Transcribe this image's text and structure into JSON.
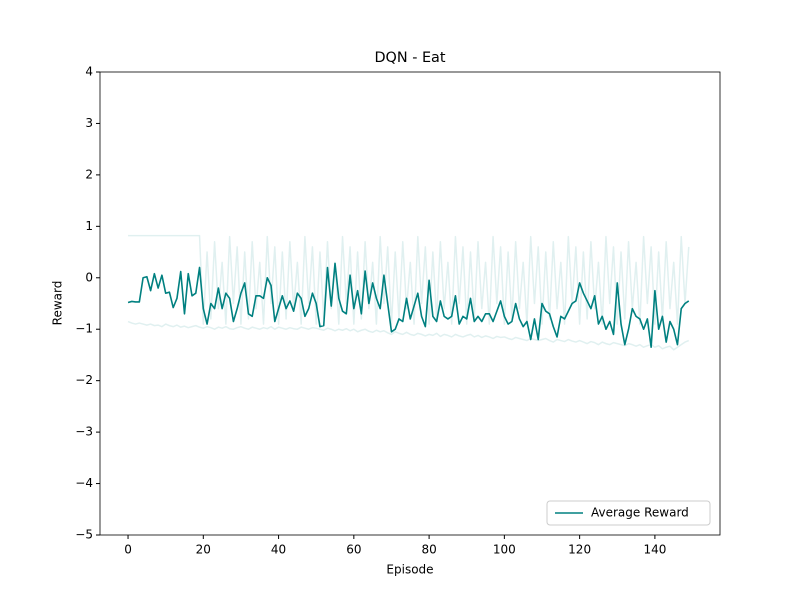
{
  "chart_data": {
    "type": "line",
    "title": "DQN - Eat",
    "xlabel": "Episode",
    "ylabel": "Reward",
    "x": [
      0,
      1,
      2,
      3,
      4,
      5,
      6,
      7,
      8,
      9,
      10,
      11,
      12,
      13,
      14,
      15,
      16,
      17,
      18,
      19,
      20,
      21,
      22,
      23,
      24,
      25,
      26,
      27,
      28,
      29,
      30,
      31,
      32,
      33,
      34,
      35,
      36,
      37,
      38,
      39,
      40,
      41,
      42,
      43,
      44,
      45,
      46,
      47,
      48,
      49,
      50,
      51,
      52,
      53,
      54,
      55,
      56,
      57,
      58,
      59,
      60,
      61,
      62,
      63,
      64,
      65,
      66,
      67,
      68,
      69,
      70,
      71,
      72,
      73,
      74,
      75,
      76,
      77,
      78,
      79,
      80,
      81,
      82,
      83,
      84,
      85,
      86,
      87,
      88,
      89,
      90,
      91,
      92,
      93,
      94,
      95,
      96,
      97,
      98,
      99,
      100,
      101,
      102,
      103,
      104,
      105,
      106,
      107,
      108,
      109,
      110,
      111,
      112,
      113,
      114,
      115,
      116,
      117,
      118,
      119,
      120,
      121,
      122,
      123,
      124,
      125,
      126,
      127,
      128,
      129,
      130,
      131,
      132,
      133,
      134,
      135,
      136,
      137,
      138,
      139,
      140,
      141,
      142,
      143,
      144,
      145,
      146,
      147,
      148,
      149
    ],
    "series": [
      {
        "color": "#008080",
        "alpha": 0.12,
        "values": [
          -0.85,
          -0.88,
          -0.9,
          -0.88,
          -0.9,
          -0.92,
          -0.9,
          -0.93,
          -0.92,
          -0.95,
          -0.9,
          -0.93,
          -0.95,
          -0.92,
          -0.96,
          -0.94,
          -0.97,
          -0.95,
          -0.93,
          -0.96,
          -0.98,
          -0.95,
          -0.97,
          -1.0,
          -0.96,
          -0.98,
          -0.95,
          -0.99,
          -1.0,
          -0.97,
          -0.95,
          -0.98,
          -1.0,
          -0.96,
          -0.98,
          -1.0,
          -0.97,
          -0.99,
          -0.95,
          -1.0,
          -0.96,
          -0.98,
          -1.0,
          -0.97,
          -0.99,
          -1.0,
          -0.96,
          -0.98,
          -1.0,
          -0.97,
          -0.98,
          -1.0,
          -1.02,
          -0.98,
          -1.0,
          -1.03,
          -1.0,
          -1.02,
          -0.99,
          -1.03,
          -1.0,
          -1.05,
          -1.02,
          -1.0,
          -1.04,
          -1.06,
          -1.02,
          -1.05,
          -1.03,
          -1.07,
          -1.1,
          -1.05,
          -1.08,
          -1.1,
          -1.06,
          -1.1,
          -1.12,
          -1.08,
          -1.1,
          -1.13,
          -1.1,
          -1.12,
          -1.08,
          -1.14,
          -1.1,
          -1.12,
          -1.15,
          -1.1,
          -1.13,
          -1.15,
          -1.12,
          -1.1,
          -1.15,
          -1.12,
          -1.16,
          -1.13,
          -1.15,
          -1.18,
          -1.14,
          -1.16,
          -1.15,
          -1.18,
          -1.2,
          -1.16,
          -1.18,
          -1.2,
          -1.22,
          -1.18,
          -1.2,
          -1.22,
          -1.2,
          -1.18,
          -1.22,
          -1.25,
          -1.2,
          -1.22,
          -1.24,
          -1.2,
          -1.23,
          -1.25,
          -1.22,
          -1.25,
          -1.28,
          -1.24,
          -1.26,
          -1.3,
          -1.25,
          -1.28,
          -1.3,
          -1.26,
          -1.28,
          -1.3,
          -1.32,
          -1.28,
          -1.3,
          -1.33,
          -1.3,
          -1.35,
          -1.32,
          -1.3,
          -1.35,
          -1.32,
          -1.38,
          -1.35,
          -1.33,
          -1.4,
          -1.35,
          -1.3,
          -1.25,
          -1.22
        ]
      },
      {
        "color": "#008080",
        "alpha": 0.12,
        "values": [
          0.82,
          0.82,
          0.82,
          0.82,
          0.82,
          0.82,
          0.82,
          0.82,
          0.82,
          0.82,
          0.82,
          0.82,
          0.82,
          0.82,
          0.82,
          0.82,
          0.82,
          0.82,
          0.82,
          0.82,
          -0.9,
          0.5,
          -0.8,
          0.7,
          -0.6,
          0.3,
          -0.9,
          0.8,
          -0.5,
          0.6,
          -0.9,
          0.5,
          -0.8,
          0.7,
          -0.6,
          0.3,
          -0.9,
          0.8,
          -0.5,
          0.6,
          -0.9,
          0.5,
          -0.8,
          0.7,
          -0.6,
          0.3,
          -0.9,
          0.8,
          -0.5,
          0.6,
          -0.9,
          0.5,
          -0.8,
          0.7,
          -0.6,
          0.3,
          -0.9,
          0.8,
          -0.5,
          0.6,
          -0.9,
          0.5,
          -0.8,
          0.7,
          -0.6,
          0.3,
          -0.9,
          0.8,
          -0.5,
          0.6,
          -0.9,
          0.5,
          -0.8,
          0.7,
          -0.6,
          0.3,
          -0.9,
          0.8,
          -0.5,
          0.6,
          -0.9,
          0.5,
          -0.8,
          0.7,
          -0.6,
          0.3,
          -0.9,
          0.8,
          -0.5,
          0.6,
          -0.9,
          0.5,
          -0.8,
          0.7,
          -0.6,
          0.3,
          -0.9,
          0.8,
          -0.5,
          0.6,
          -0.9,
          0.5,
          -0.8,
          0.7,
          -0.6,
          0.3,
          -0.9,
          0.8,
          -0.5,
          0.6,
          -0.9,
          0.5,
          -0.8,
          0.7,
          -0.6,
          0.3,
          -0.9,
          0.8,
          -0.5,
          0.6,
          -0.9,
          0.5,
          -0.8,
          0.7,
          -0.6,
          0.3,
          -0.9,
          0.8,
          -0.5,
          0.6,
          -0.9,
          0.5,
          -0.8,
          0.7,
          -0.6,
          0.3,
          -0.9,
          0.8,
          -0.5,
          0.6,
          -0.9,
          0.5,
          -0.8,
          0.7,
          -0.6,
          0.3,
          -0.9,
          0.8,
          -0.5,
          0.6
        ]
      },
      {
        "name": "Average Reward",
        "color": "#008080",
        "alpha": 1,
        "values": [
          -0.48,
          -0.46,
          -0.47,
          -0.47,
          0.0,
          0.02,
          -0.25,
          0.08,
          -0.2,
          0.05,
          -0.3,
          -0.28,
          -0.58,
          -0.4,
          0.12,
          -0.7,
          0.08,
          -0.35,
          -0.3,
          0.2,
          -0.6,
          -0.9,
          -0.5,
          -0.6,
          -0.2,
          -0.6,
          -0.3,
          -0.4,
          -0.85,
          -0.6,
          -0.3,
          -0.1,
          -0.7,
          -0.75,
          -0.35,
          -0.35,
          -0.4,
          0.0,
          -0.15,
          -0.85,
          -0.6,
          -0.35,
          -0.6,
          -0.45,
          -0.65,
          -0.3,
          -0.4,
          -0.75,
          -0.6,
          -0.3,
          -0.5,
          -0.95,
          -0.93,
          0.2,
          -0.55,
          0.28,
          -0.4,
          -0.65,
          -0.7,
          0.05,
          -0.6,
          -0.25,
          -0.7,
          0.13,
          -0.5,
          -0.1,
          -0.4,
          -0.6,
          0.05,
          -0.5,
          -1.05,
          -1.0,
          -0.8,
          -0.85,
          -0.4,
          -0.8,
          -0.55,
          -0.3,
          -0.75,
          -0.95,
          -0.05,
          -0.75,
          -0.85,
          -0.45,
          -0.75,
          -0.8,
          -0.75,
          -0.35,
          -0.9,
          -0.75,
          -0.8,
          -0.4,
          -0.85,
          -0.75,
          -0.85,
          -0.7,
          -0.7,
          -0.85,
          -0.65,
          -0.45,
          -0.75,
          -0.9,
          -0.85,
          -0.5,
          -0.8,
          -0.95,
          -0.85,
          -1.2,
          -0.8,
          -1.2,
          -0.5,
          -0.65,
          -0.7,
          -0.95,
          -1.15,
          -0.75,
          -0.8,
          -0.65,
          -0.5,
          -0.45,
          -0.1,
          -0.3,
          -0.45,
          -0.6,
          -0.35,
          -0.9,
          -0.75,
          -1.0,
          -0.85,
          -1.1,
          -0.1,
          -0.9,
          -1.3,
          -1.0,
          -0.6,
          -0.75,
          -0.8,
          -1.0,
          -0.8,
          -1.35,
          -0.25,
          -1.0,
          -0.75,
          -1.25,
          -0.85,
          -1.0,
          -1.3,
          -0.6,
          -0.5,
          -0.45
        ]
      }
    ],
    "xlim": [
      -7.45,
      157.3
    ],
    "ylim": [
      -5,
      4
    ],
    "xticks": [
      0,
      20,
      40,
      60,
      80,
      100,
      120,
      140
    ],
    "yticks": [
      -5,
      -4,
      -3,
      -2,
      -1,
      0,
      1,
      2,
      3,
      4
    ],
    "legend": "lower right"
  }
}
